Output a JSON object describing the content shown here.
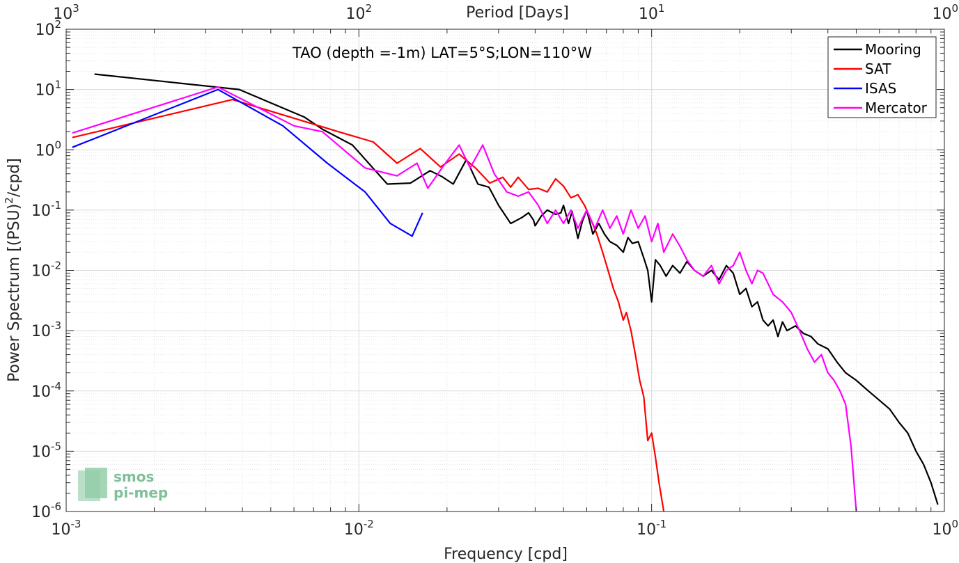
{
  "chart_data": {
    "type": "line",
    "title": "TAO (depth =-1m) LAT=5°S;LON=110°W",
    "xlabel": "Frequency [cpd]",
    "ylabel": "Power Spectrum [(PSU)²/cpd]",
    "ylabel_main": "Power Spectrum [(PSU)",
    "ylabel_sup": "2",
    "ylabel_tail": "/cpd]",
    "x2label": "Period [Days]",
    "xscale": "log",
    "yscale": "log",
    "xlim": [
      0.001,
      1
    ],
    "ylim": [
      1e-06,
      100
    ],
    "grid": true,
    "legend_position": "top-right",
    "x_ticks": [
      {
        "value": 0.001,
        "base": "10",
        "exp": "-3"
      },
      {
        "value": 0.01,
        "base": "10",
        "exp": "-2"
      },
      {
        "value": 0.1,
        "base": "10",
        "exp": "-1"
      },
      {
        "value": 1,
        "base": "10",
        "exp": "0"
      }
    ],
    "y_ticks": [
      {
        "value": 1e-06,
        "base": "10",
        "exp": "-6"
      },
      {
        "value": 1e-05,
        "base": "10",
        "exp": "-5"
      },
      {
        "value": 0.0001,
        "base": "10",
        "exp": "-4"
      },
      {
        "value": 0.001,
        "base": "10",
        "exp": "-3"
      },
      {
        "value": 0.01,
        "base": "10",
        "exp": "-2"
      },
      {
        "value": 0.1,
        "base": "10",
        "exp": "-1"
      },
      {
        "value": 1,
        "base": "10",
        "exp": "0"
      },
      {
        "value": 10,
        "base": "10",
        "exp": "1"
      },
      {
        "value": 100,
        "base": "10",
        "exp": "2"
      }
    ],
    "top_ticks": [
      {
        "value": 1000,
        "base": "10",
        "exp": "3"
      },
      {
        "value": 100,
        "base": "10",
        "exp": "2"
      },
      {
        "value": 10,
        "base": "10",
        "exp": "1"
      },
      {
        "value": 1,
        "base": "10",
        "exp": "0"
      }
    ],
    "series": [
      {
        "name": "Mooring",
        "color": "#000000",
        "points": [
          [
            0.00125,
            18
          ],
          [
            0.0039,
            10
          ],
          [
            0.0065,
            3.5
          ],
          [
            0.0075,
            2.2
          ],
          [
            0.0095,
            1.2
          ],
          [
            0.0125,
            0.27
          ],
          [
            0.015,
            0.28
          ],
          [
            0.0175,
            0.45
          ],
          [
            0.0192,
            0.36
          ],
          [
            0.021,
            0.27
          ],
          [
            0.0233,
            0.69
          ],
          [
            0.0255,
            0.27
          ],
          [
            0.0278,
            0.24
          ],
          [
            0.03,
            0.12
          ],
          [
            0.033,
            0.06
          ],
          [
            0.036,
            0.075
          ],
          [
            0.038,
            0.09
          ],
          [
            0.0395,
            0.068
          ],
          [
            0.04,
            0.055
          ],
          [
            0.042,
            0.08
          ],
          [
            0.044,
            0.1
          ],
          [
            0.047,
            0.085
          ],
          [
            0.049,
            0.09
          ],
          [
            0.05,
            0.12
          ],
          [
            0.052,
            0.06
          ],
          [
            0.0535,
            0.095
          ],
          [
            0.056,
            0.034
          ],
          [
            0.058,
            0.065
          ],
          [
            0.06,
            0.1
          ],
          [
            0.063,
            0.04
          ],
          [
            0.066,
            0.06
          ],
          [
            0.069,
            0.04
          ],
          [
            0.072,
            0.03
          ],
          [
            0.076,
            0.026
          ],
          [
            0.08,
            0.02
          ],
          [
            0.083,
            0.035
          ],
          [
            0.086,
            0.028
          ],
          [
            0.09,
            0.03
          ],
          [
            0.094,
            0.016
          ],
          [
            0.097,
            0.01
          ],
          [
            0.1,
            0.003
          ],
          [
            0.103,
            0.015
          ],
          [
            0.107,
            0.012
          ],
          [
            0.112,
            0.008
          ],
          [
            0.118,
            0.012
          ],
          [
            0.125,
            0.009
          ],
          [
            0.132,
            0.014
          ],
          [
            0.14,
            0.01
          ],
          [
            0.15,
            0.008
          ],
          [
            0.16,
            0.01
          ],
          [
            0.17,
            0.007
          ],
          [
            0.18,
            0.012
          ],
          [
            0.19,
            0.009
          ],
          [
            0.2,
            0.004
          ],
          [
            0.21,
            0.005
          ],
          [
            0.22,
            0.0025
          ],
          [
            0.23,
            0.003
          ],
          [
            0.24,
            0.0015
          ],
          [
            0.25,
            0.0012
          ],
          [
            0.26,
            0.0015
          ],
          [
            0.27,
            0.0008
          ],
          [
            0.28,
            0.0014
          ],
          [
            0.29,
            0.001
          ],
          [
            0.31,
            0.0012
          ],
          [
            0.33,
            0.0009
          ],
          [
            0.35,
            0.0008
          ],
          [
            0.37,
            0.0006
          ],
          [
            0.4,
            0.0005
          ],
          [
            0.43,
            0.0003
          ],
          [
            0.46,
            0.0002
          ],
          [
            0.5,
            0.00015
          ],
          [
            0.55,
            0.0001
          ],
          [
            0.6,
            7e-05
          ],
          [
            0.65,
            5e-05
          ],
          [
            0.7,
            3e-05
          ],
          [
            0.75,
            2e-05
          ],
          [
            0.8,
            1e-05
          ],
          [
            0.85,
            6e-06
          ],
          [
            0.9,
            3e-06
          ],
          [
            0.95,
            1.3e-06
          ]
        ]
      },
      {
        "name": "SAT",
        "color": "#ff0000",
        "points": [
          [
            0.00105,
            1.6
          ],
          [
            0.0037,
            6.8
          ],
          [
            0.0085,
            2.0
          ],
          [
            0.0112,
            1.35
          ],
          [
            0.0135,
            0.6
          ],
          [
            0.0162,
            1.05
          ],
          [
            0.019,
            0.52
          ],
          [
            0.022,
            0.85
          ],
          [
            0.025,
            0.5
          ],
          [
            0.028,
            0.28
          ],
          [
            0.031,
            0.35
          ],
          [
            0.033,
            0.24
          ],
          [
            0.035,
            0.35
          ],
          [
            0.038,
            0.22
          ],
          [
            0.041,
            0.23
          ],
          [
            0.044,
            0.2
          ],
          [
            0.047,
            0.33
          ],
          [
            0.05,
            0.25
          ],
          [
            0.053,
            0.16
          ],
          [
            0.056,
            0.18
          ],
          [
            0.059,
            0.12
          ],
          [
            0.062,
            0.07
          ],
          [
            0.065,
            0.04
          ],
          [
            0.068,
            0.02
          ],
          [
            0.071,
            0.01
          ],
          [
            0.074,
            0.005
          ],
          [
            0.077,
            0.003
          ],
          [
            0.08,
            0.0015
          ],
          [
            0.082,
            0.002
          ],
          [
            0.085,
            0.001
          ],
          [
            0.088,
            0.0004
          ],
          [
            0.091,
            0.00015
          ],
          [
            0.094,
            8e-05
          ],
          [
            0.097,
            1.5e-05
          ],
          [
            0.1,
            2e-05
          ],
          [
            0.103,
            8e-06
          ],
          [
            0.106,
            3e-06
          ],
          [
            0.11,
            1e-06
          ]
        ]
      },
      {
        "name": "ISAS",
        "color": "#0000ff",
        "points": [
          [
            0.00105,
            1.1
          ],
          [
            0.0033,
            10
          ],
          [
            0.0055,
            2.5
          ],
          [
            0.0078,
            0.6
          ],
          [
            0.0105,
            0.2
          ],
          [
            0.0128,
            0.06
          ],
          [
            0.0152,
            0.037
          ],
          [
            0.0165,
            0.09
          ]
        ]
      },
      {
        "name": "Mercator",
        "color": "#ff00ff",
        "points": [
          [
            0.00105,
            1.9
          ],
          [
            0.0033,
            11
          ],
          [
            0.006,
            2.5
          ],
          [
            0.0075,
            2.0
          ],
          [
            0.0105,
            0.5
          ],
          [
            0.0135,
            0.37
          ],
          [
            0.0158,
            0.6
          ],
          [
            0.0172,
            0.23
          ],
          [
            0.0195,
            0.55
          ],
          [
            0.022,
            1.2
          ],
          [
            0.024,
            0.5
          ],
          [
            0.0265,
            1.2
          ],
          [
            0.029,
            0.4
          ],
          [
            0.032,
            0.2
          ],
          [
            0.035,
            0.17
          ],
          [
            0.038,
            0.2
          ],
          [
            0.041,
            0.12
          ],
          [
            0.044,
            0.06
          ],
          [
            0.047,
            0.1
          ],
          [
            0.05,
            0.06
          ],
          [
            0.053,
            0.1
          ],
          [
            0.056,
            0.05
          ],
          [
            0.06,
            0.1
          ],
          [
            0.064,
            0.05
          ],
          [
            0.068,
            0.1
          ],
          [
            0.072,
            0.05
          ],
          [
            0.076,
            0.08
          ],
          [
            0.08,
            0.04
          ],
          [
            0.085,
            0.1
          ],
          [
            0.09,
            0.05
          ],
          [
            0.095,
            0.08
          ],
          [
            0.1,
            0.03
          ],
          [
            0.105,
            0.06
          ],
          [
            0.11,
            0.02
          ],
          [
            0.118,
            0.04
          ],
          [
            0.125,
            0.025
          ],
          [
            0.132,
            0.015
          ],
          [
            0.14,
            0.01
          ],
          [
            0.15,
            0.008
          ],
          [
            0.16,
            0.012
          ],
          [
            0.17,
            0.006
          ],
          [
            0.18,
            0.01
          ],
          [
            0.19,
            0.012
          ],
          [
            0.2,
            0.02
          ],
          [
            0.21,
            0.01
          ],
          [
            0.22,
            0.006
          ],
          [
            0.23,
            0.01
          ],
          [
            0.24,
            0.009
          ],
          [
            0.25,
            0.006
          ],
          [
            0.26,
            0.004
          ],
          [
            0.28,
            0.003
          ],
          [
            0.3,
            0.002
          ],
          [
            0.32,
            0.001
          ],
          [
            0.34,
            0.0005
          ],
          [
            0.36,
            0.0003
          ],
          [
            0.38,
            0.0004
          ],
          [
            0.4,
            0.0002
          ],
          [
            0.42,
            0.00015
          ],
          [
            0.44,
            0.0001
          ],
          [
            0.46,
            6e-05
          ],
          [
            0.48,
            1.2e-05
          ],
          [
            0.5,
            1e-06
          ]
        ]
      }
    ]
  },
  "logo": {
    "line1": "smos",
    "line2": "pi-mep"
  }
}
